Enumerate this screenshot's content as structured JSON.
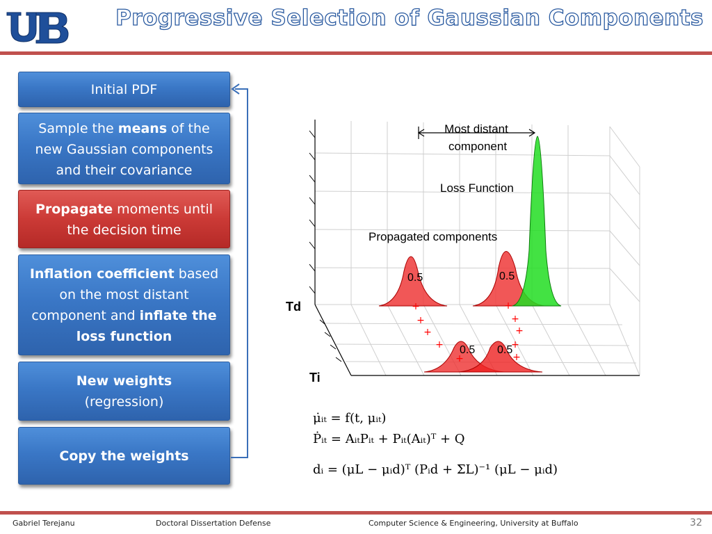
{
  "header": {
    "logo_text": "UB",
    "title": "Progressive Selection of Gaussian Components"
  },
  "flow": {
    "box1": "Initial PDF",
    "box2_a": "Sample the ",
    "box2_b": "means",
    "box2_c": " of the new Gaussian components and their covariance",
    "box3_a": "Propagate",
    "box3_b": " moments until the decision time",
    "box4_a": "Inflation coefficient",
    "box4_b": "  based on the most distant component and ",
    "box4_c": "inflate the loss function",
    "box5_a": "New weights",
    "box5_b": "(regression)",
    "box6": "Copy the weights"
  },
  "figure": {
    "most_distant": "Most distant",
    "component": "component",
    "loss_function": "Loss Function",
    "propagated": "Propagated components",
    "weight_labels": [
      "0.5",
      "0.5",
      "0.5",
      "0.5"
    ],
    "axis_td": "Td",
    "axis_ti": "Ti"
  },
  "equations": {
    "eq1": "μ̇ᵢₜ = f(t, μᵢₜ)",
    "eq2": "Ṗᵢₜ = AᵢₜPᵢₜ + Pᵢₜ(Aᵢₜ)ᵀ + Q",
    "eq3": "dᵢ = (μL − μᵢd)ᵀ (Pᵢd + ΣL)⁻¹ (μL − μᵢd)"
  },
  "footer": {
    "author": "Gabriel Terejanu",
    "event": "Doctoral Dissertation Defense",
    "dept": "Computer Science & Engineering, University at Buffalo",
    "page": "32"
  },
  "colors": {
    "accent_red": "#c0504d",
    "box_blue": "#3a77c6",
    "box_red": "#cb3a36",
    "title_outline": "#2a5aa0"
  }
}
